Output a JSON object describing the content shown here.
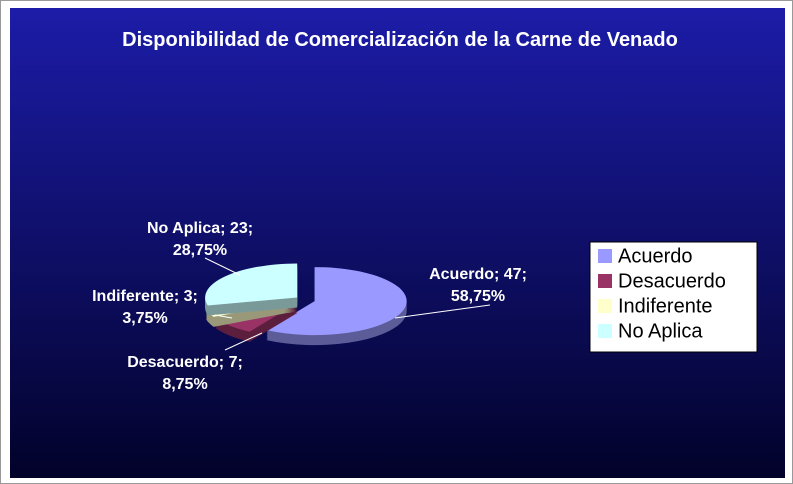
{
  "chart_data": {
    "type": "pie3d",
    "title": "Disponibilidad de Comercialización de la Carne de Venado",
    "categories": [
      "Acuerdo",
      "Desacuerdo",
      "Indiferente",
      "No Aplica"
    ],
    "values": [
      47,
      7,
      3,
      23
    ],
    "value_labels": [
      "Acuerdo; 47; 58,75%",
      "Desacuerdo; 7; 8,75%",
      "Indiferente; 3; 3,75%",
      "No Aplica; 23; 28,75%"
    ],
    "colors": [
      "#9999ff",
      "#993366",
      "#ffffcc",
      "#ccffff"
    ],
    "legend": "right"
  }
}
